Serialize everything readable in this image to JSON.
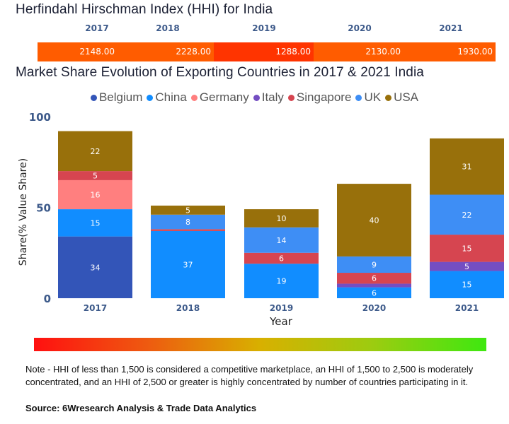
{
  "hhi": {
    "title": "Herfindahl Hirschman Index (HHI) for India",
    "years": [
      "2017",
      "2018",
      "2019",
      "2020",
      "2021"
    ],
    "values": [
      "2148.00",
      "2228.00",
      "1288.00",
      "2130.00",
      "1930.00"
    ],
    "colors": [
      "#FF5C00",
      "#FF5C00",
      "#FF3400",
      "#FF5C00",
      "#FF5C00"
    ]
  },
  "chart_data": {
    "type": "bar",
    "stacked": true,
    "title": "Market Share Evolution of Exporting Countries in 2017 & 2021 India",
    "xlabel": "Year",
    "ylabel": "Share(% Value Share)",
    "ylim": [
      0,
      100
    ],
    "yticks": [
      "0",
      "50",
      "100"
    ],
    "categories": [
      "2017",
      "2018",
      "2019",
      "2020",
      "2021"
    ],
    "legend_position": "top-center",
    "series": [
      {
        "name": "Belgium",
        "color": "#3355B8",
        "values": [
          34,
          0,
          0,
          0,
          0
        ],
        "labels": [
          "34",
          "",
          "",
          "",
          ""
        ]
      },
      {
        "name": "China",
        "color": "#118DFF",
        "values": [
          15,
          37,
          19,
          6,
          15
        ],
        "labels": [
          "15",
          "37",
          "19",
          "6",
          "15"
        ]
      },
      {
        "name": "Germany",
        "color": "#FF7F7F",
        "values": [
          16,
          0,
          0,
          0,
          0
        ],
        "labels": [
          "16",
          "",
          "",
          "",
          ""
        ]
      },
      {
        "name": "Italy",
        "color": "#744EC2",
        "values": [
          0,
          0,
          0,
          2,
          5
        ],
        "labels": [
          "",
          "",
          "",
          "",
          "5"
        ]
      },
      {
        "name": "Singapore",
        "color": "#D64550",
        "values": [
          5,
          1,
          6,
          6,
          15
        ],
        "labels": [
          "5",
          "",
          "6",
          "6",
          "15"
        ]
      },
      {
        "name": "UK",
        "color": "#3E8EF5",
        "values": [
          0,
          8,
          14,
          9,
          22
        ],
        "labels": [
          "",
          "8",
          "14",
          "9",
          "22"
        ]
      },
      {
        "name": "USA",
        "color": "#98700B",
        "values": [
          22,
          5,
          10,
          40,
          31
        ],
        "labels": [
          "22",
          "5",
          "10",
          "40",
          "31"
        ]
      }
    ]
  },
  "scale_bar": {
    "colors": [
      "#ff1010",
      "#3ee810"
    ]
  },
  "footer": {
    "note": "Note - HHI of less than 1,500 is considered a competitive marketplace, an HHI of 1,500 to 2,500 is moderately concentrated, and an HHI of 2,500 or greater is highly concentrated by number of countries participating in it.",
    "source": "Source: 6Wresearch Analysis & Trade Data Analytics"
  }
}
